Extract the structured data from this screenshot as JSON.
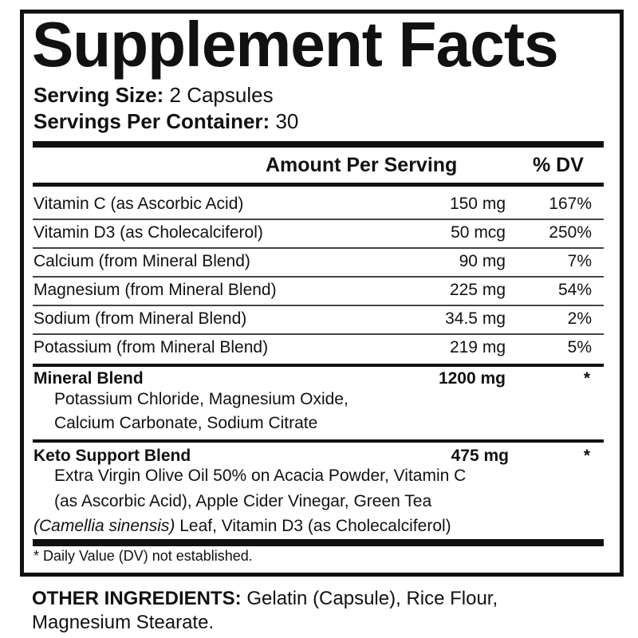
{
  "title": "Supplement Facts",
  "serving_size": {
    "label": "Serving Size:",
    "value": "2 Capsules"
  },
  "servings_per_container": {
    "label": "Servings Per Container:",
    "value": "30"
  },
  "header": {
    "amount": "Amount Per Serving",
    "dv": "% DV"
  },
  "nutrients": [
    {
      "name": "Vitamin C (as Ascorbic Acid)",
      "amount": "150 mg",
      "dv": "167%"
    },
    {
      "name": "Vitamin D3 (as Cholecalciferol)",
      "amount": "50 mcg",
      "dv": "250%"
    },
    {
      "name": "Calcium (from Mineral Blend)",
      "amount": "90 mg",
      "dv": "7%"
    },
    {
      "name": "Magnesium (from Mineral Blend)",
      "amount": "225 mg",
      "dv": "54%"
    },
    {
      "name": "Sodium (from Mineral Blend)",
      "amount": "34.5 mg",
      "dv": "2%"
    },
    {
      "name": "Potassium (from Mineral Blend)",
      "amount": "219 mg",
      "dv": "5%"
    }
  ],
  "mineral_blend": {
    "name": "Mineral Blend",
    "amount": "1200 mg",
    "dv": "*",
    "lines": [
      "Potassium Chloride, Magnesium Oxide,",
      "Calcium Carbonate, Sodium Citrate"
    ]
  },
  "keto_blend": {
    "name": "Keto Support Blend",
    "amount": "475 mg",
    "dv": "*",
    "lines": [
      "Extra Virgin Olive Oil 50% on Acacia Powder, Vitamin C",
      "(as Ascorbic Acid), Apple Cider Vinegar, Green Tea"
    ],
    "line3_italic": "(Camellia sinensis)",
    "line3_rest": " Leaf, Vitamin D3 (as Cholecalciferol)"
  },
  "footnote": "* Daily Value (DV) not established.",
  "other_ingredients": {
    "label": "OTHER INGREDIENTS:",
    "line1": " Gelatin (Capsule), Rice Flour,",
    "line2": "Magnesium Stearate."
  }
}
